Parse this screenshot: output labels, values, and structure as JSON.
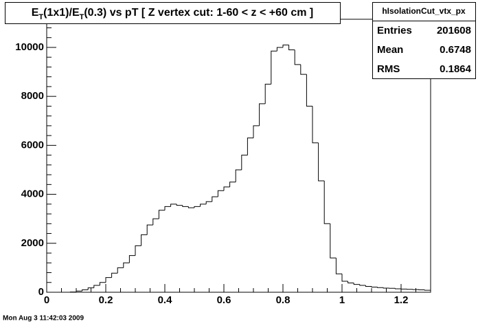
{
  "chart_data": {
    "type": "histogram",
    "title": [
      "E",
      "T",
      "(1x1)/E",
      "T",
      "(0.3) vs pT [ Z vertex cut: 1-60 < z < +60 cm ]"
    ],
    "stats": {
      "name": "hIsolationCut_vtx_px",
      "rows": [
        [
          "Entries",
          "201608"
        ],
        [
          "Mean",
          "0.6748"
        ],
        [
          "RMS",
          "0.1864"
        ]
      ]
    },
    "timestamp": "Mon Aug  3 11:42:03 2009",
    "bins": [
      0,
      0.02,
      0.04,
      0.06,
      0.08,
      0.1,
      0.12,
      0.14,
      0.16,
      0.18,
      0.2,
      0.22,
      0.24,
      0.26,
      0.28,
      0.3,
      0.32,
      0.34,
      0.36,
      0.38,
      0.4,
      0.42,
      0.44,
      0.46,
      0.48,
      0.5,
      0.52,
      0.54,
      0.56,
      0.58,
      0.6,
      0.62,
      0.64,
      0.66,
      0.68,
      0.7,
      0.72,
      0.74,
      0.76,
      0.78,
      0.8,
      0.82,
      0.84,
      0.86,
      0.88,
      0.9,
      0.92,
      0.94,
      0.96,
      0.98,
      1,
      1.02,
      1.04,
      1.06,
      1.08,
      1.1,
      1.12,
      1.14,
      1.16,
      1.18,
      1.2,
      1.22,
      1.24,
      1.26,
      1.28,
      1.3
    ],
    "values": [
      0,
      0,
      0,
      0,
      10,
      50,
      100,
      180,
      280,
      400,
      600,
      780,
      1000,
      1200,
      1500,
      1900,
      2350,
      2750,
      3000,
      3350,
      3500,
      3600,
      3550,
      3500,
      3450,
      3500,
      3600,
      3700,
      3900,
      4150,
      4300,
      4500,
      5000,
      5600,
      6300,
      6800,
      7700,
      8500,
      9850,
      10000,
      10100,
      9900,
      9300,
      8900,
      7600,
      6100,
      4550,
      2800,
      1400,
      750,
      450,
      380,
      320,
      280,
      240,
      210,
      190,
      170,
      160,
      140,
      130,
      120,
      110,
      100,
      80
    ],
    "color": "#000000",
    "xlim": [
      0,
      1.3
    ],
    "ylim": [
      0,
      11150
    ],
    "xticks": [
      0,
      0.2,
      0.4,
      0.6,
      0.8,
      1,
      1.2
    ],
    "yticks": [
      0,
      2000,
      4000,
      6000,
      8000,
      10000
    ]
  }
}
